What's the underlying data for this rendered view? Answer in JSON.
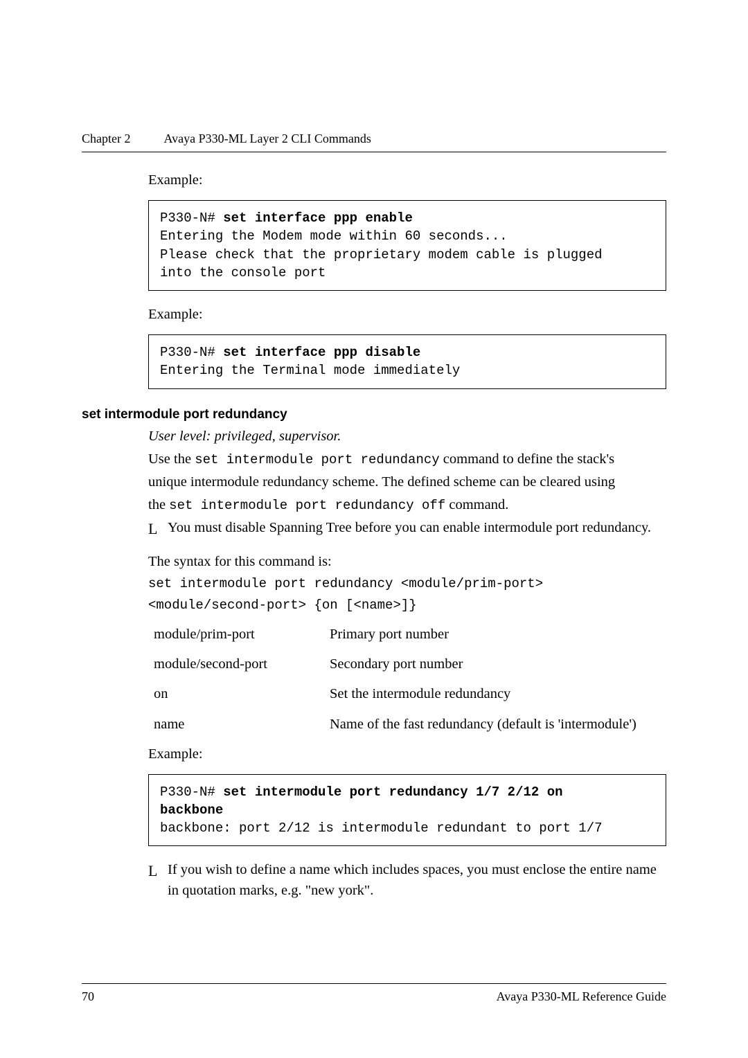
{
  "header": {
    "chapter": "Chapter 2",
    "title": "Avaya P330-ML Layer 2 CLI Commands"
  },
  "labels": {
    "example": "Example:",
    "syntax_intro": "The syntax for this command is:"
  },
  "codebox1": {
    "prompt": "P330-N# ",
    "command": "set interface ppp enable",
    "line1": "Entering the Modem mode within 60 seconds...",
    "line2": "Please check that the proprietary modem cable is plugged",
    "line3": "into the console port"
  },
  "codebox2": {
    "prompt": "P330-N# ",
    "command": "set interface ppp disable",
    "line1": "Entering the Terminal mode immediately"
  },
  "section": {
    "heading": "set intermodule port redundancy",
    "user_level": "User level: privileged, supervisor.",
    "desc_line1a": "Use the ",
    "desc_line1b": "set intermodule port redundancy",
    "desc_line1c": " command to define the stack's",
    "desc_line2": "unique intermodule redundancy scheme. The defined scheme can be cleared using",
    "desc_line3a": "the ",
    "desc_line3b": "set intermodule port redundancy off",
    "desc_line3c": " command.",
    "note1": "You must disable Spanning Tree before you can enable intermodule port redundancy."
  },
  "syntax": {
    "line1": "set intermodule port redundancy <module/prim-port>",
    "line2": "<module/second-port> {on [<name>]}"
  },
  "params": [
    {
      "name": "module/prim-port",
      "desc": "Primary port number"
    },
    {
      "name": "module/second-port",
      "desc": "Secondary port number"
    },
    {
      "name": "on",
      "desc": "Set the intermodule redundancy"
    },
    {
      "name": "name",
      "desc": "Name of the fast redundancy (default is 'intermodule')"
    }
  ],
  "codebox3": {
    "prompt": "P330-N# ",
    "command1": "set intermodule port redundancy 1/7 2/12 on",
    "command2": "backbone",
    "line1": "backbone: port 2/12 is intermodule redundant to port 1/7"
  },
  "note2": "If you wish to define a name which includes spaces, you must enclose the entire name in quotation marks, e.g. \"new york\".",
  "info_glyph": "L",
  "footer": {
    "page": "70",
    "doc": "Avaya P330-ML Reference Guide"
  }
}
